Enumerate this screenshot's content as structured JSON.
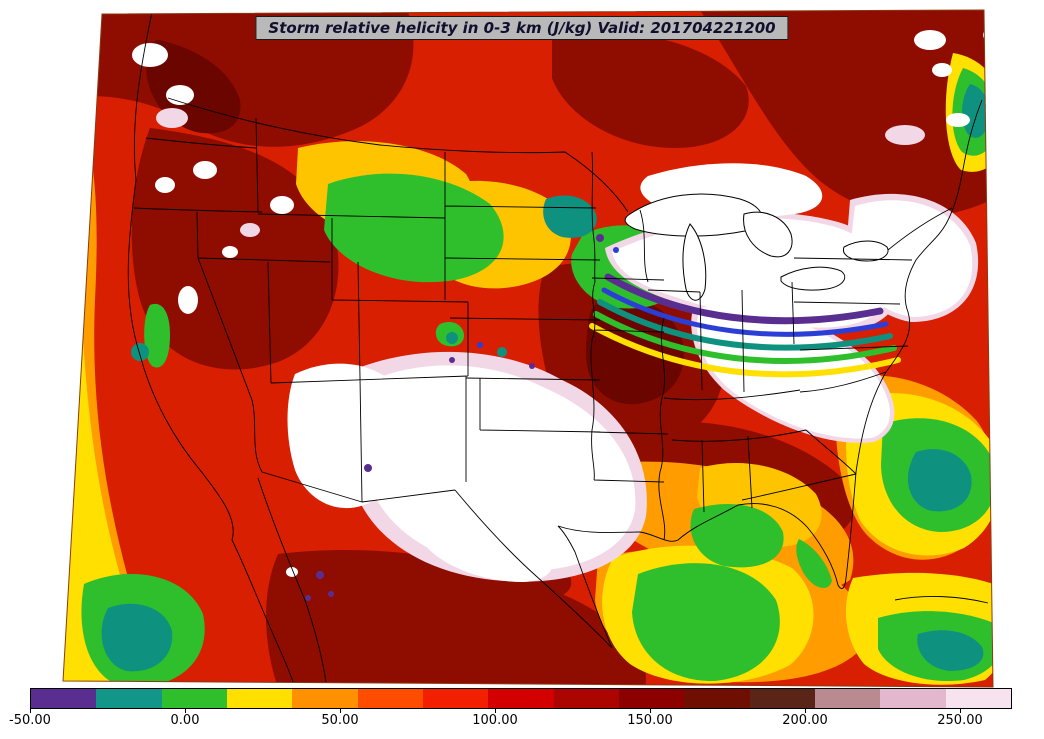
{
  "title": {
    "text": "Storm relative helicity in 0-3 km (J/kg) Valid: 201704221200"
  },
  "map": {
    "description": "Filled contour map of storm relative helicity over the continental United States with state boundaries",
    "palette": {
      "base": "#d81f02",
      "darkred": "#8f0d00",
      "deepred": "#6b0500",
      "orange": "#ff9c00",
      "gold": "#ffc400",
      "yellow": "#ffe000",
      "green": "#2fbf2c",
      "teal": "#0f9180",
      "blue": "#2b3fd6",
      "purple": "#5a2e91",
      "white": "#ffffff",
      "pink": "#f2d7e7",
      "line": "#000000",
      "frame": "#8a3a10"
    }
  },
  "colorbar": {
    "units": "J/kg",
    "min": -50,
    "max": 250,
    "ticks": [
      "-50.00",
      "0.00",
      "50.00",
      "100.00",
      "150.00",
      "200.00",
      "250.00"
    ],
    "segments": [
      {
        "color": "#5a2e91"
      },
      {
        "color": "#12968a"
      },
      {
        "color": "#2fbf2c"
      },
      {
        "color": "#ffe000"
      },
      {
        "color": "#ff9000"
      },
      {
        "color": "#ff4d00"
      },
      {
        "color": "#f32000"
      },
      {
        "color": "#d40000"
      },
      {
        "color": "#ac0400"
      },
      {
        "color": "#8c0000"
      },
      {
        "color": "#6e0f02"
      },
      {
        "color": "#5a2417"
      },
      {
        "color": "#b98a8f"
      },
      {
        "color": "#e3b7cd"
      },
      {
        "color": "#f6e3ef"
      }
    ]
  }
}
